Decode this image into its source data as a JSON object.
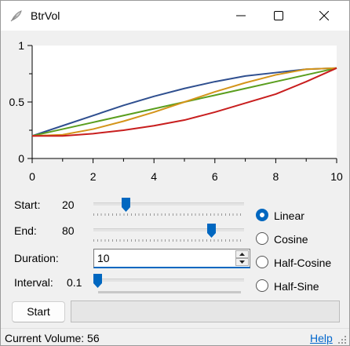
{
  "window": {
    "title": "BtrVol",
    "icon": "feather-icon",
    "controls": [
      "minimize-icon",
      "maximize-icon",
      "close-icon"
    ]
  },
  "chart_data": {
    "type": "line",
    "title": "",
    "xlabel": "",
    "ylabel": "",
    "xlim": [
      0,
      10
    ],
    "ylim": [
      0,
      1
    ],
    "x_ticks": [
      "0",
      "2",
      "4",
      "6",
      "8",
      "10"
    ],
    "y_ticks": [
      "0",
      "0.5",
      "1"
    ],
    "grid": false,
    "x": [
      0,
      1,
      2,
      3,
      4,
      5,
      6,
      7,
      8,
      9,
      10
    ],
    "series": [
      {
        "color": "#2f4f8f",
        "values": [
          0.2,
          0.29,
          0.38,
          0.47,
          0.55,
          0.62,
          0.68,
          0.73,
          0.76,
          0.79,
          0.8
        ]
      },
      {
        "color": "#5a9e1e",
        "values": [
          0.2,
          0.26,
          0.32,
          0.38,
          0.44,
          0.5,
          0.56,
          0.62,
          0.68,
          0.74,
          0.8
        ]
      },
      {
        "color": "#d4941a",
        "values": [
          0.2,
          0.21,
          0.26,
          0.33,
          0.41,
          0.5,
          0.59,
          0.67,
          0.74,
          0.79,
          0.8
        ]
      },
      {
        "color": "#c81e1e",
        "values": [
          0.2,
          0.2,
          0.22,
          0.25,
          0.29,
          0.34,
          0.41,
          0.49,
          0.57,
          0.68,
          0.8
        ]
      }
    ]
  },
  "controls": {
    "start": {
      "label": "Start:",
      "value": "20",
      "slider_fraction": 0.2
    },
    "end": {
      "label": "End:",
      "value": "80",
      "slider_fraction": 0.8
    },
    "duration": {
      "label": "Duration:",
      "value": "10"
    },
    "interval": {
      "label": "Interval:",
      "value": "0.1",
      "slider_fraction": 0.0
    }
  },
  "mode": {
    "selected": "Linear",
    "options": [
      "Linear",
      "Cosine",
      "Half-Cosine",
      "Half-Sine"
    ]
  },
  "actions": {
    "start_label": "Start",
    "progress_fraction": 0.0
  },
  "status": {
    "text": "Current Volume: 56",
    "help_label": "Help"
  },
  "colors": {
    "accent": "#0067c0",
    "link": "#0066cc"
  }
}
